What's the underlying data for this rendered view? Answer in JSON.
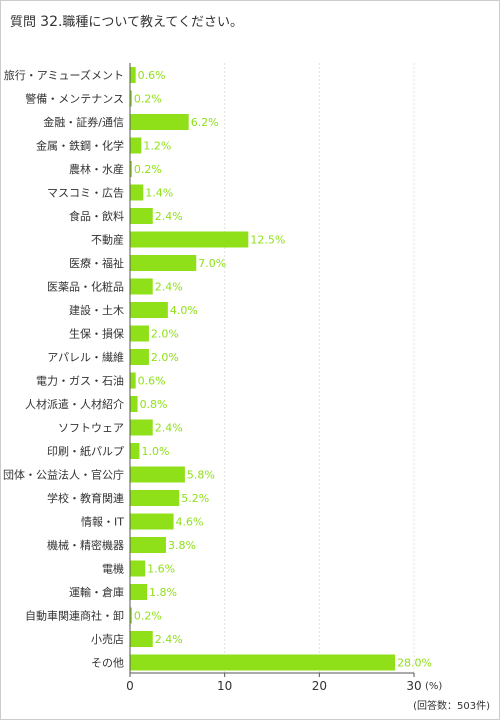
{
  "title": {
    "prefix": "質問",
    "number": "32.",
    "text": "職種について教えてください。"
  },
  "footnote": "(回答数：503件)",
  "chart_data": {
    "type": "bar",
    "orientation": "horizontal",
    "categories": [
      "ホテル・旅行・アミューズメント",
      "警備・メンテナンス",
      "金融・証券/通信",
      "金属・鉄鋼・化学",
      "農林・水産",
      "マスコミ・広告",
      "食品・飲料",
      "不動産",
      "医療・福祉",
      "医薬品・化粧品",
      "建設・土木",
      "生保・損保",
      "アパレル・繊維",
      "電力・ガス・石油",
      "人材派遣・人材紹介",
      "ソフトウェア",
      "印刷・紙パルプ",
      "団体・公益法人・官公庁",
      "学校・教育関連",
      "情報・IT",
      "機械・精密機器",
      "電機",
      "運輸・倉庫",
      "自動車関連商社・卸",
      "小売店",
      "その他"
    ],
    "values": [
      0.6,
      0.2,
      6.2,
      1.2,
      0.2,
      1.4,
      2.4,
      12.5,
      7.0,
      2.4,
      4.0,
      2.0,
      2.0,
      0.6,
      0.8,
      2.4,
      1.0,
      5.8,
      5.2,
      4.6,
      3.8,
      1.6,
      1.8,
      0.2,
      2.4,
      28.0
    ],
    "value_labels": [
      "0.6%",
      "0.2%",
      "6.2%",
      "1.2%",
      "0.2%",
      "1.4%",
      "2.4%",
      "12.5%",
      "7.0%",
      "2.4%",
      "4.0%",
      "2.0%",
      "2.0%",
      "0.6%",
      "0.8%",
      "2.4%",
      "1.0%",
      "5.8%",
      "5.2%",
      "4.6%",
      "3.8%",
      "1.6%",
      "1.8%",
      "0.2%",
      "2.4%",
      "28.0%"
    ],
    "xlim": [
      0,
      30
    ],
    "xticks": [
      0,
      10,
      20,
      30
    ],
    "tick_labels": [
      "0",
      "10",
      "20",
      "30"
    ],
    "unit": "(%)",
    "grid": "vertical dashed",
    "bar_color": "#8fe019",
    "label_color": "#8fe019"
  }
}
